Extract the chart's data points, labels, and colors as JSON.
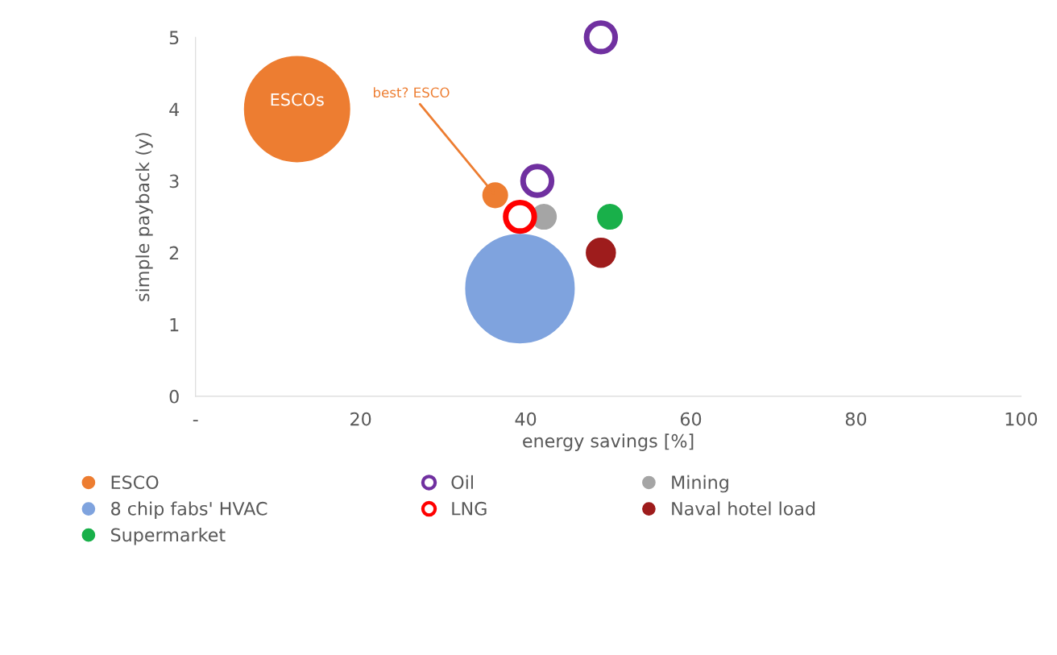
{
  "chart_data": {
    "type": "bubble",
    "xlabel": "energy savings [%]",
    "ylabel": "simple payback (y)",
    "xlim": [
      0,
      100
    ],
    "xticks": [
      {
        "value": 0,
        "label": "-"
      },
      20,
      40,
      60,
      80,
      100
    ],
    "ylim": [
      0,
      5
    ],
    "yticks": [
      0,
      1,
      2,
      3,
      4,
      5
    ],
    "grid": false,
    "legend": "bottom",
    "series": [
      {
        "name": "ESCO",
        "color": "#ed7d31",
        "x": [
          12.3,
          36.3
        ],
        "values": [
          4.0,
          2.8
        ],
        "sizes": [
          0.94,
          0.05
        ]
      },
      {
        "name": "8 chip fabs' HVAC",
        "color": "#7fa3de",
        "x": [
          39.3
        ],
        "values": [
          1.5
        ],
        "sizes": [
          1.0
        ]
      },
      {
        "name": "Supermarket",
        "color": "#19b04a",
        "x": [
          50.2
        ],
        "values": [
          2.5
        ],
        "sizes": [
          0.05
        ]
      },
      {
        "name": "Oil",
        "type": "scatter",
        "color": "#7030a0",
        "x": [
          49.1,
          41.4
        ],
        "values": [
          5.0,
          3.0
        ],
        "sizes": [
          0.07,
          0.07
        ]
      },
      {
        "name": "LNG",
        "type": "scatter",
        "color": "#ff0000",
        "x": [
          39.3
        ],
        "values": [
          2.5
        ],
        "sizes": [
          0.07
        ]
      },
      {
        "name": "Mining",
        "color": "#a5a5a5",
        "x": [
          42.2
        ],
        "values": [
          2.5
        ],
        "sizes": [
          0.05
        ]
      },
      {
        "name": "Naval hotel load",
        "color": "#9e1c1c",
        "x": [
          49.1
        ],
        "values": [
          2.0
        ],
        "sizes": [
          0.07
        ]
      }
    ],
    "annotations": [
      {
        "text": "ESCOs",
        "x": 12.3,
        "y": 4.0
      },
      {
        "text": "best? ESCO",
        "x": 36.3,
        "y": 2.8
      }
    ]
  }
}
